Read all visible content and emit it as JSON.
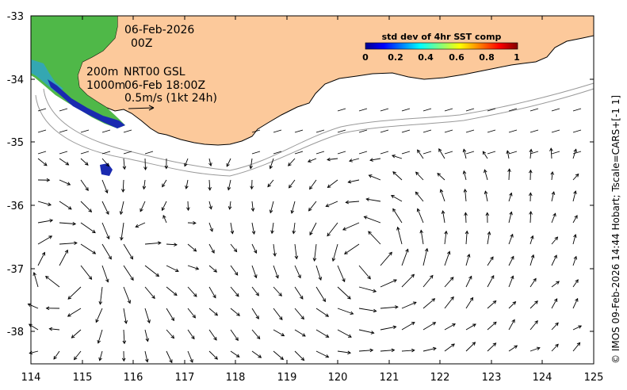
{
  "map": {
    "x_ticks": [
      "114",
      "115",
      "116",
      "117",
      "118",
      "119",
      "120",
      "121",
      "122",
      "123",
      "124",
      "125"
    ],
    "y_ticks": [
      "-33",
      "-34",
      "-35",
      "-36",
      "-37",
      "-38"
    ],
    "lon_range": [
      114,
      125
    ],
    "lat_range": [
      -38.5,
      -33
    ]
  },
  "annotations": {
    "date": "06-Feb-2026",
    "hour": "00Z",
    "contour_200": "200m",
    "contour_1000": "1000m",
    "product": "NRT00 GSL",
    "product_time": "06-Feb 18:00Z",
    "scale": "0.5m/s (1kt 24h)"
  },
  "colorbar": {
    "title": "std dev of 4hr SST comp",
    "ticks": [
      "0",
      "0.2",
      "0.4",
      "0.6",
      "0.8",
      "1"
    ]
  },
  "credit": "© IMOS 09-Feb-2026 14:44 Hobart; Tscale=CARS+[-1 1]",
  "colors": {
    "land": "#fcc99b",
    "coast": "#000000",
    "contour": "#999999"
  }
}
